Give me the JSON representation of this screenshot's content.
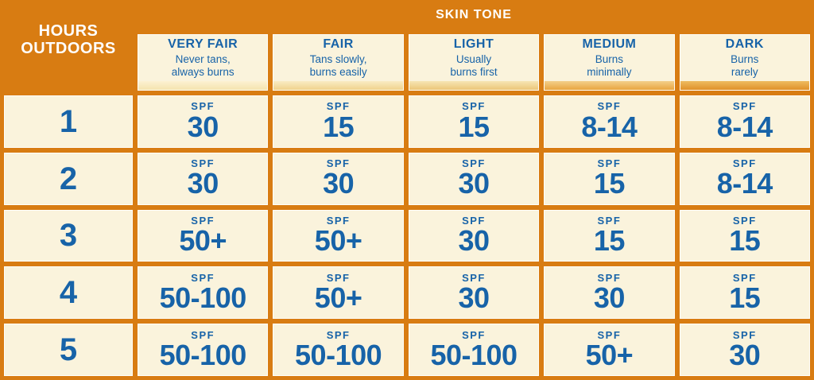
{
  "header": {
    "skin_tone_title": "SKIN TONE",
    "hours_outdoors_label": "HOURS\nOUTDOORS"
  },
  "labels": {
    "spf": "SPF"
  },
  "colors": {
    "background_orange": "#d87c12",
    "cell_cream": "#faf3dc",
    "text_blue": "#1763a8",
    "text_white": "#ffffff"
  },
  "columns": [
    {
      "name": "VERY FAIR",
      "desc": "Never tans,\nalways burns",
      "tone_light": "#fcf2d2",
      "tone": "#f5e3ae"
    },
    {
      "name": "FAIR",
      "desc": "Tans slowly,\nburns easily",
      "tone_light": "#f9ecc4",
      "tone": "#f0d28c"
    },
    {
      "name": "LIGHT",
      "desc": "Usually\nburns first",
      "tone_light": "#f7e5b4",
      "tone": "#ecc678"
    },
    {
      "name": "MEDIUM",
      "desc": "Burns\nminimally",
      "tone_light": "#f3cf8a",
      "tone": "#e9a540"
    },
    {
      "name": "DARK",
      "desc": "Burns\nrarely",
      "tone_light": "#eebb60",
      "tone": "#e0912a"
    }
  ],
  "rows": [
    {
      "hours": "1",
      "spf": [
        "30",
        "15",
        "15",
        "8-14",
        "8-14"
      ]
    },
    {
      "hours": "2",
      "spf": [
        "30",
        "30",
        "30",
        "15",
        "8-14"
      ]
    },
    {
      "hours": "3",
      "spf": [
        "50+",
        "50+",
        "30",
        "15",
        "15"
      ]
    },
    {
      "hours": "4",
      "spf": [
        "50-100",
        "50+",
        "30",
        "30",
        "15"
      ]
    },
    {
      "hours": "5",
      "spf": [
        "50-100",
        "50-100",
        "50-100",
        "50+",
        "30"
      ]
    }
  ],
  "chart_data": {
    "type": "table",
    "title": "SKIN TONE",
    "x_header": "SKIN TONE",
    "y_header": "HOURS OUTDOORS",
    "columns": [
      "VERY FAIR",
      "FAIR",
      "LIGHT",
      "MEDIUM",
      "DARK"
    ],
    "column_descriptions": [
      "Never tans, always burns",
      "Tans slowly, burns easily",
      "Usually burns first",
      "Burns minimally",
      "Burns rarely"
    ],
    "rows": [
      1,
      2,
      3,
      4,
      5
    ],
    "value_unit": "SPF",
    "values": [
      [
        "30",
        "15",
        "15",
        "8-14",
        "8-14"
      ],
      [
        "30",
        "30",
        "30",
        "15",
        "8-14"
      ],
      [
        "50+",
        "50+",
        "30",
        "15",
        "15"
      ],
      [
        "50-100",
        "50+",
        "30",
        "30",
        "15"
      ],
      [
        "50-100",
        "50-100",
        "50-100",
        "50+",
        "30"
      ]
    ]
  }
}
